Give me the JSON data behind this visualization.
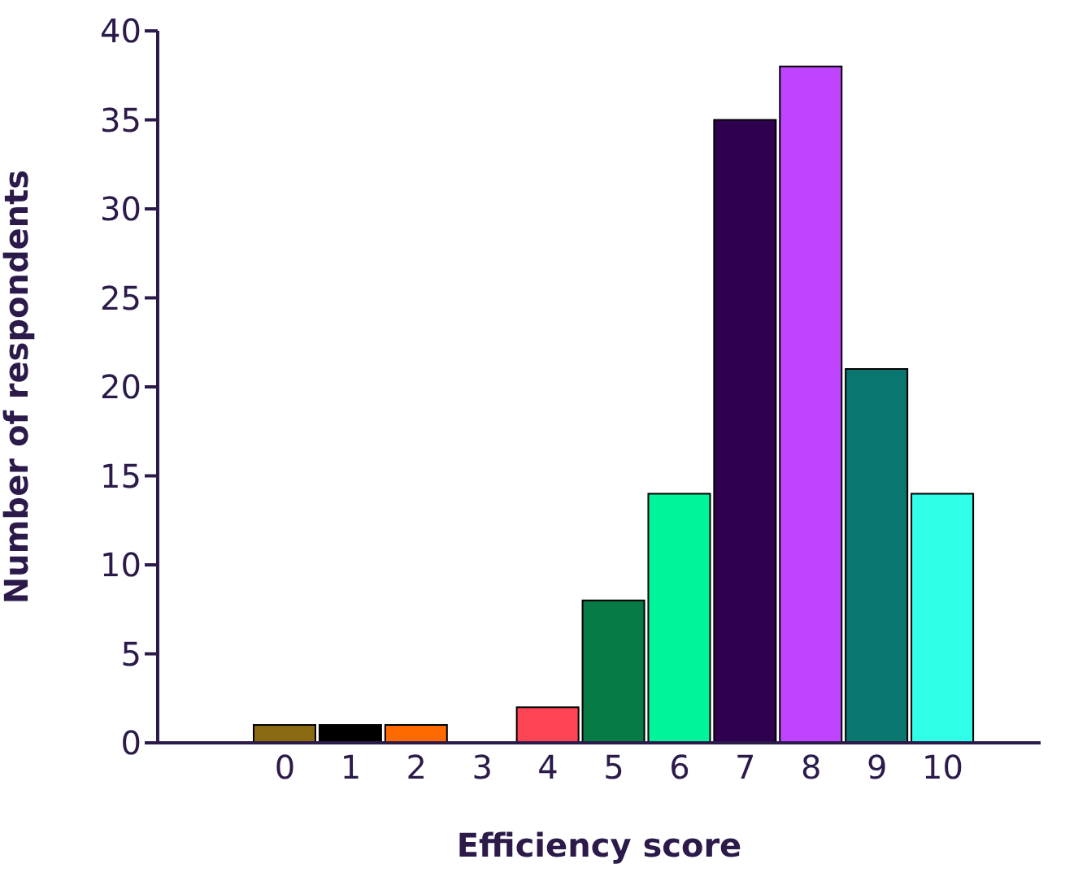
{
  "chart_data": {
    "type": "bar",
    "xlabel": "Efficiency score",
    "ylabel": "Number of respondents",
    "categories": [
      "0",
      "1",
      "2",
      "3",
      "4",
      "5",
      "6",
      "7",
      "8",
      "9",
      "10"
    ],
    "values": [
      1,
      1,
      1,
      0,
      2,
      8,
      14,
      35,
      38,
      21,
      14
    ],
    "colors": [
      "#8a6a10",
      "#000000",
      "#ff6a00",
      "#ffffff",
      "#ff4455",
      "#087a45",
      "#00f59b",
      "#2e004f",
      "#c044ff",
      "#0b7570",
      "#30ffe8"
    ],
    "ylim": [
      0,
      40
    ],
    "yticks": [
      0,
      5,
      10,
      15,
      20,
      25,
      30,
      35,
      40
    ],
    "grid": false,
    "legend": false
  }
}
